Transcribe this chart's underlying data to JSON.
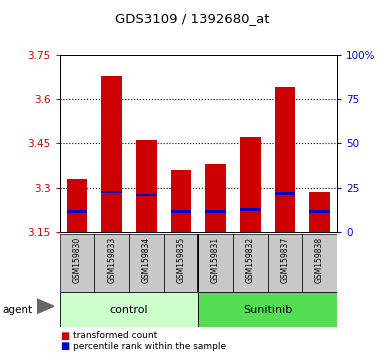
{
  "title": "GDS3109 / 1392680_at",
  "samples": [
    "GSM159830",
    "GSM159833",
    "GSM159834",
    "GSM159835",
    "GSM159831",
    "GSM159832",
    "GSM159837",
    "GSM159838"
  ],
  "bar_tops": [
    3.33,
    3.68,
    3.46,
    3.36,
    3.38,
    3.47,
    3.64,
    3.285
  ],
  "bar_bottoms": [
    3.15,
    3.15,
    3.15,
    3.15,
    3.15,
    3.15,
    3.15,
    3.15
  ],
  "blue_marks": [
    3.22,
    3.285,
    3.275,
    3.22,
    3.22,
    3.225,
    3.28,
    3.22
  ],
  "bar_color": "#cc0000",
  "blue_color": "#0000cc",
  "ylim": [
    3.15,
    3.75
  ],
  "yticks": [
    3.15,
    3.3,
    3.45,
    3.6,
    3.75
  ],
  "right_ytick_labels": [
    "0",
    "25",
    "50",
    "75",
    "100%"
  ],
  "groups": [
    {
      "label": "control",
      "indices": [
        0,
        1,
        2,
        3
      ],
      "color": "#ccffcc"
    },
    {
      "label": "Sunitinib",
      "indices": [
        4,
        5,
        6,
        7
      ],
      "color": "#55dd55"
    }
  ],
  "legend_items": [
    {
      "label": "transformed count",
      "color": "#cc0000"
    },
    {
      "label": "percentile rank within the sample",
      "color": "#0000cc"
    }
  ],
  "tick_label_bg": "#c8c8c8",
  "left_tick_color": "#cc0000",
  "right_tick_color": "#0000cc",
  "title_color": "#000000"
}
